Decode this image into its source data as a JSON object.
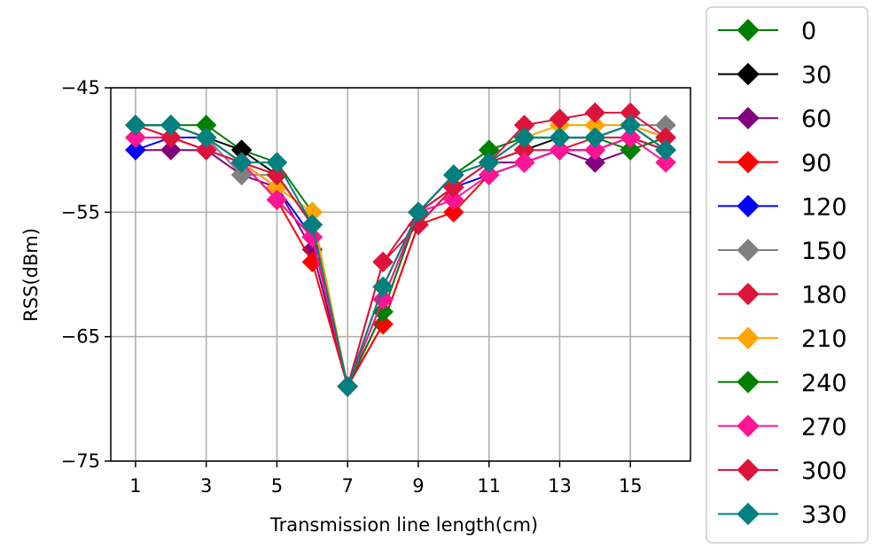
{
  "chart_data": {
    "type": "line",
    "xlabel": "Transmission line length(cm)",
    "ylabel": "RSS(dBm)",
    "xlim": [
      0.3,
      16.7
    ],
    "ylim": [
      -75,
      -45
    ],
    "xticks": [
      1,
      3,
      5,
      7,
      9,
      11,
      13,
      15
    ],
    "yticks": [
      -75,
      -65,
      -55,
      -45
    ],
    "ytick_labels": [
      "−75",
      "−65",
      "−55",
      "−45"
    ],
    "grid": true,
    "legend_position": "outside-right",
    "marker": "diamond",
    "x": [
      1,
      2,
      3,
      4,
      5,
      6,
      7,
      8,
      9,
      10,
      11,
      12,
      13,
      14,
      15,
      16
    ],
    "series": [
      {
        "name": "0",
        "color": "#008000",
        "values": [
          -48,
          -48,
          -48,
          -50,
          -51,
          -55,
          -69,
          -63,
          -55,
          -52,
          -50,
          -49,
          -49,
          -49,
          -48,
          -49
        ]
      },
      {
        "name": "30",
        "color": "#000000",
        "values": [
          -48,
          -48,
          -49,
          -50,
          -52,
          -56,
          -69,
          -61,
          -55,
          -52,
          -51,
          -50,
          -49,
          -49,
          -48,
          -50
        ]
      },
      {
        "name": "60",
        "color": "#800080",
        "values": [
          -50,
          -50,
          -50,
          -52,
          -53,
          -58,
          -69,
          -64,
          -56,
          -53,
          -51,
          -51,
          -50,
          -51,
          -50,
          -49
        ]
      },
      {
        "name": "90",
        "color": "#ff0000",
        "values": [
          -48,
          -49,
          -50,
          -51,
          -54,
          -59,
          -69,
          -64,
          -56,
          -55,
          -52,
          -51,
          -50,
          -50,
          -49,
          -50
        ]
      },
      {
        "name": "120",
        "color": "#0000ff",
        "values": [
          -50,
          -49,
          -49,
          -51,
          -53,
          -57,
          -69,
          -62,
          -55,
          -53,
          -52,
          -51,
          -50,
          -50,
          -49,
          -50
        ]
      },
      {
        "name": "150",
        "color": "#808080",
        "values": [
          -48,
          -48,
          -49,
          -52,
          -52,
          -56,
          -69,
          -62,
          -55,
          -52,
          -51,
          -49,
          -49,
          -49,
          -48,
          -48
        ]
      },
      {
        "name": "180",
        "color": "#dc143c",
        "values": [
          -49,
          -49,
          -50,
          -51,
          -54,
          -57,
          -69,
          -59,
          -56,
          -53,
          -51,
          -50,
          -50,
          -49,
          -49,
          -50
        ]
      },
      {
        "name": "210",
        "color": "#ffa500",
        "values": [
          -48,
          -48,
          -49,
          -51,
          -53,
          -55,
          -69,
          -61,
          -55,
          -52,
          -51,
          -49,
          -48,
          -48,
          -48,
          -49
        ]
      },
      {
        "name": "240",
        "color": "#008000",
        "values": [
          -48,
          -48,
          -49,
          -51,
          -52,
          -56,
          -69,
          -63,
          -55,
          -52,
          -50,
          -49,
          -49,
          -49,
          -50,
          -49
        ]
      },
      {
        "name": "270",
        "color": "#ff1493",
        "values": [
          -49,
          -49,
          -50,
          -51,
          -54,
          -57,
          -69,
          -62,
          -55,
          -54,
          -52,
          -51,
          -50,
          -50,
          -49,
          -51
        ]
      },
      {
        "name": "300",
        "color": "#dc143c",
        "values": [
          -48,
          -49,
          -50,
          -51,
          -52,
          -56,
          -69,
          -59,
          -55,
          -53,
          -51,
          -48,
          -47.5,
          -47,
          -47,
          -49
        ]
      },
      {
        "name": "330",
        "color": "#008080",
        "values": [
          -48,
          -48,
          -49,
          -51,
          -51,
          -56,
          -69,
          -61,
          -55,
          -52,
          -51,
          -49,
          -49,
          -49,
          -48,
          -50
        ]
      }
    ]
  }
}
